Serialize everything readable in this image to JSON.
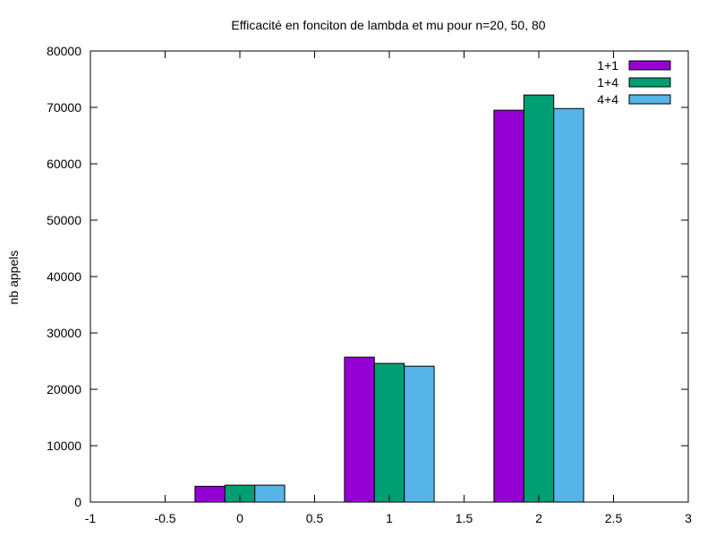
{
  "chart_data": {
    "type": "bar",
    "title": "Efficacité en fonciton de lambda et mu pour n=20, 50, 80",
    "xlabel": "",
    "ylabel": "nb appels",
    "xlim": [
      -1,
      3
    ],
    "ylim": [
      0,
      80000
    ],
    "x_ticks": [
      "-1",
      "-0.5",
      "0",
      "0.5",
      "1",
      "1.5",
      "2",
      "2.5",
      "3"
    ],
    "y_ticks": [
      "0",
      "10000",
      "20000",
      "30000",
      "40000",
      "50000",
      "60000",
      "70000",
      "80000"
    ],
    "categories": [
      0,
      1,
      2
    ],
    "legend_position": "top-right",
    "grid": false,
    "series": [
      {
        "name": "1+1",
        "color": "#9400d3",
        "values": [
          2800,
          25700,
          69500
        ]
      },
      {
        "name": "1+4",
        "color": "#009e73",
        "values": [
          3000,
          24600,
          72200
        ]
      },
      {
        "name": "4+4",
        "color": "#56b4e9",
        "values": [
          3000,
          24100,
          69800
        ]
      }
    ]
  }
}
